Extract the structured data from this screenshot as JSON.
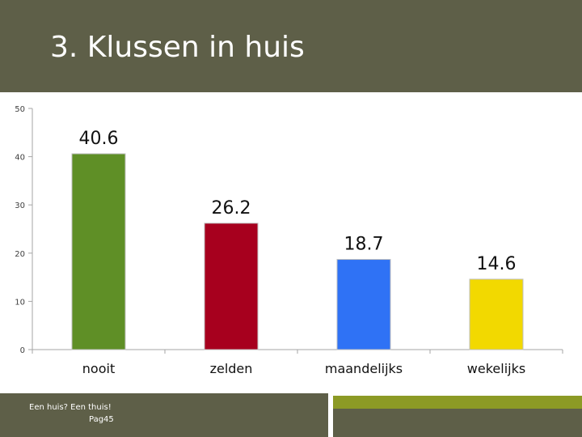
{
  "title": "3. Klussen in huis",
  "footer": {
    "line1": "Een huis? Een thuis!",
    "line2": "Pag45"
  },
  "chart_data": {
    "type": "bar",
    "categories": [
      "nooit",
      "zelden",
      "maandelijks",
      "wekelijks"
    ],
    "values": [
      40.6,
      26.2,
      18.7,
      14.6
    ],
    "data_labels": [
      "40.6",
      "26.2",
      "18.7",
      "14.6"
    ],
    "colors": [
      "#5f8f26",
      "#a7001e",
      "#2f72f5",
      "#f2d900"
    ],
    "ylim": [
      0,
      50
    ],
    "yticks": [
      0,
      10,
      20,
      30,
      40,
      50
    ],
    "ytick_labels": [
      "0",
      "10",
      "20",
      "30",
      "40",
      "50"
    ],
    "grid": false,
    "legend": "none"
  }
}
